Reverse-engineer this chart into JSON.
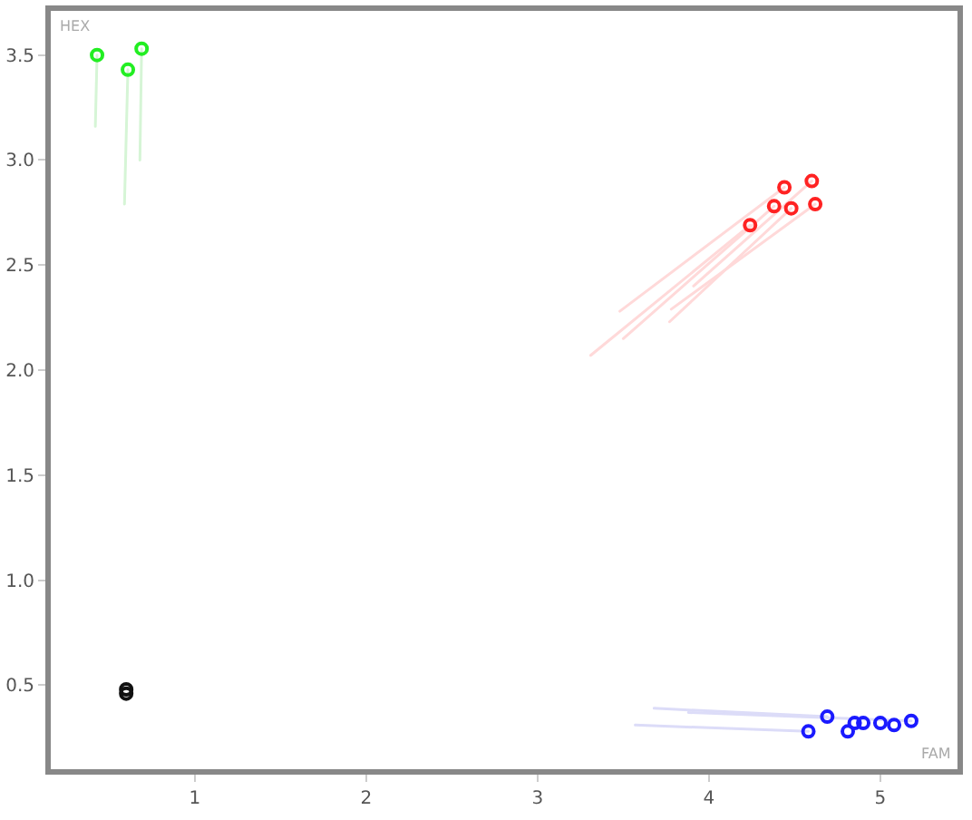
{
  "chart_data": {
    "type": "scatter",
    "xlabel": "FAM",
    "ylabel": "HEX",
    "xlim": [
      0.16,
      5.45
    ],
    "ylim": [
      0.1,
      3.71
    ],
    "xticks": [
      1,
      2,
      3,
      4,
      5
    ],
    "yticks": [
      {
        "value": 0.5,
        "label": "0.5"
      },
      {
        "value": 1,
        "label": "1.0"
      },
      {
        "value": 1.5,
        "label": "1.5"
      },
      {
        "value": 2,
        "label": "2.0"
      },
      {
        "value": 2.5,
        "label": "2.5"
      },
      {
        "value": 3,
        "label": "3.0"
      },
      {
        "value": 3.5,
        "label": "3.5"
      }
    ],
    "grid": false,
    "marker": "circle",
    "series": [
      {
        "type": "line",
        "marker": "none",
        "color": "#d6f5d6",
        "x": [
          0.42,
          0.43
        ],
        "values": [
          3.16,
          3.5
        ]
      },
      {
        "type": "line",
        "marker": "none",
        "color": "#d6f5d6",
        "x": [
          0.59,
          0.61
        ],
        "values": [
          2.79,
          3.43
        ]
      },
      {
        "type": "line",
        "marker": "none",
        "color": "#d6f5d6",
        "x": [
          0.68,
          0.69
        ],
        "values": [
          3.0,
          3.53
        ]
      },
      {
        "type": "line",
        "marker": "none",
        "color": "#ffd9d9",
        "x": [
          3.31,
          4.24
        ],
        "values": [
          2.07,
          2.69
        ]
      },
      {
        "type": "line",
        "marker": "none",
        "color": "#ffd9d9",
        "x": [
          3.48,
          4.44
        ],
        "values": [
          2.28,
          2.87
        ]
      },
      {
        "type": "line",
        "marker": "none",
        "color": "#ffd9d9",
        "x": [
          3.5,
          4.38
        ],
        "values": [
          2.15,
          2.78
        ]
      },
      {
        "type": "line",
        "marker": "none",
        "color": "#ffd9d9",
        "x": [
          3.77,
          4.48
        ],
        "values": [
          2.23,
          2.77
        ]
      },
      {
        "type": "line",
        "marker": "none",
        "color": "#ffd9d9",
        "x": [
          3.91,
          4.6
        ],
        "values": [
          2.4,
          2.9
        ]
      },
      {
        "type": "line",
        "marker": "none",
        "color": "#ffd9d9",
        "x": [
          3.78,
          4.62
        ],
        "values": [
          2.29,
          2.79
        ]
      },
      {
        "type": "line",
        "marker": "none",
        "color": "#dcdcf8",
        "x": [
          3.68,
          4.69
        ],
        "values": [
          0.39,
          0.35
        ]
      },
      {
        "type": "line",
        "marker": "none",
        "color": "#dcdcf8",
        "x": [
          3.88,
          5.18
        ],
        "values": [
          0.37,
          0.33
        ]
      },
      {
        "type": "line",
        "marker": "none",
        "color": "#dcdcf8",
        "x": [
          3.57,
          4.58
        ],
        "values": [
          0.31,
          0.28
        ]
      },
      {
        "color": "#22ee22",
        "x": [
          0.43,
          0.61,
          0.69
        ],
        "values": [
          3.5,
          3.43,
          3.53
        ]
      },
      {
        "color": "#ff2222",
        "x": [
          4.24,
          4.44,
          4.38,
          4.48,
          4.6,
          4.62
        ],
        "values": [
          2.69,
          2.87,
          2.78,
          2.77,
          2.9,
          2.79
        ]
      },
      {
        "color": "#1a1aff",
        "x": [
          4.58,
          4.69,
          4.81,
          4.85,
          4.9,
          5.0,
          5.08,
          5.18
        ],
        "values": [
          0.28,
          0.35,
          0.28,
          0.32,
          0.32,
          0.32,
          0.31,
          0.33
        ]
      },
      {
        "color": "#111111",
        "x": [
          0.6,
          0.6
        ],
        "values": [
          0.48,
          0.46
        ]
      }
    ]
  }
}
